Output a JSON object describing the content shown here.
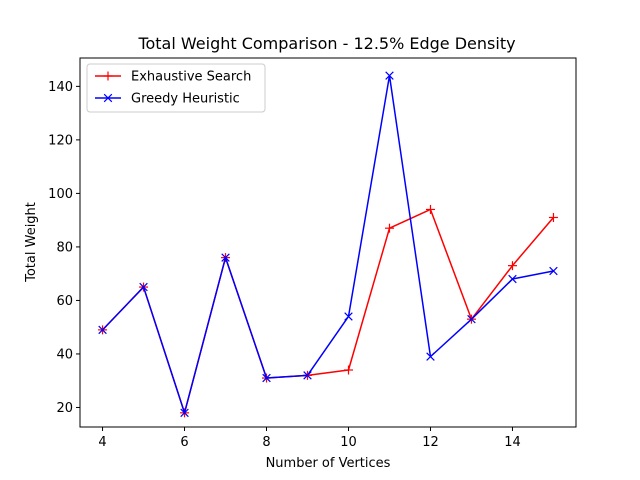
{
  "chart_data": {
    "type": "line",
    "title": "Total Weight Comparison - 12.5% Edge Density",
    "xlabel": "Number of Vertices",
    "ylabel": "Total Weight",
    "xlim": [
      3.45,
      15.55
    ],
    "ylim": [
      12.7,
      150.6
    ],
    "xticks": [
      4,
      6,
      8,
      10,
      12,
      14
    ],
    "yticks": [
      20,
      40,
      60,
      80,
      100,
      120,
      140
    ],
    "grid": false,
    "legend_position": "top-left",
    "x": [
      4,
      5,
      6,
      7,
      8,
      9,
      10,
      11,
      12,
      13,
      14,
      15
    ],
    "series": [
      {
        "name": "Exhaustive Search",
        "color": "#ff0000",
        "marker": "plus",
        "values": [
          49,
          65,
          18,
          76,
          31,
          32,
          34,
          87,
          94,
          53,
          73,
          91
        ]
      },
      {
        "name": "Greedy Heuristic",
        "color": "#0000ff",
        "marker": "x",
        "values": [
          49,
          65,
          18,
          76,
          31,
          32,
          54,
          144,
          39,
          53,
          68,
          71
        ]
      }
    ]
  }
}
